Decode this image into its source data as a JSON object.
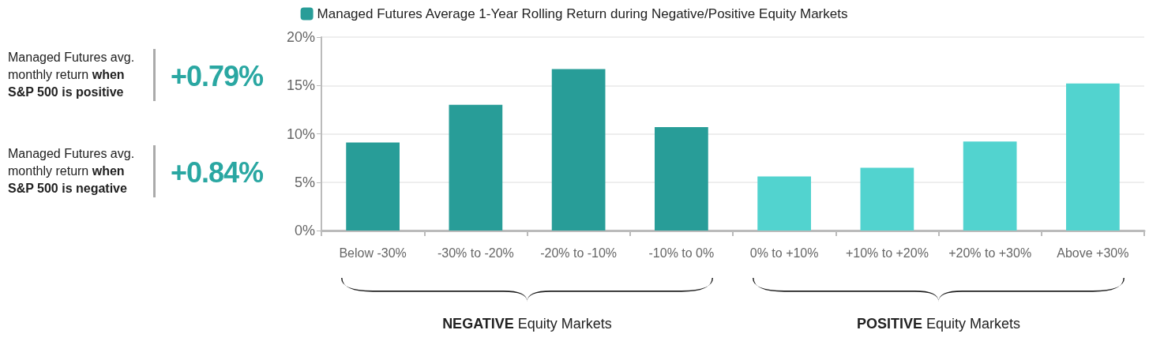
{
  "chart_data": {
    "type": "bar",
    "categories": [
      "Below -30%",
      "-30% to -20%",
      "-20% to -10%",
      "-10% to 0%",
      "0% to +10%",
      "+10% to +20%",
      "+20% to +30%",
      "Above +30%"
    ],
    "series": [
      {
        "name": "Managed Futures Average 1-Year Rolling Return during Negative/Positive Equity Markets",
        "color": "#289d98",
        "colors": [
          "#289d98",
          "#289d98",
          "#289d98",
          "#289d98",
          "#52d3cf",
          "#52d3cf",
          "#52d3cf",
          "#52d3cf"
        ],
        "values": [
          9.1,
          13.0,
          16.7,
          10.7,
          5.6,
          6.5,
          9.2,
          15.2
        ]
      }
    ],
    "ylim": [
      0,
      20
    ],
    "yticks": [
      {
        "value": 0,
        "label": "0%"
      },
      {
        "value": 5,
        "label": "5%"
      },
      {
        "value": 10,
        "label": "10%"
      },
      {
        "value": 15,
        "label": "15%"
      },
      {
        "value": 20,
        "label": "20%"
      }
    ],
    "grid": "y",
    "legend": "top",
    "annotations": [
      "Managed Futures avg. monthly return when S&P 500 is positive",
      "+0.79%",
      "Managed Futures avg. monthly return when S&P 500 is negative",
      "+0.84%",
      "NEGATIVE Equity Markets",
      "POSITIVE Equity Markets"
    ]
  }
}
